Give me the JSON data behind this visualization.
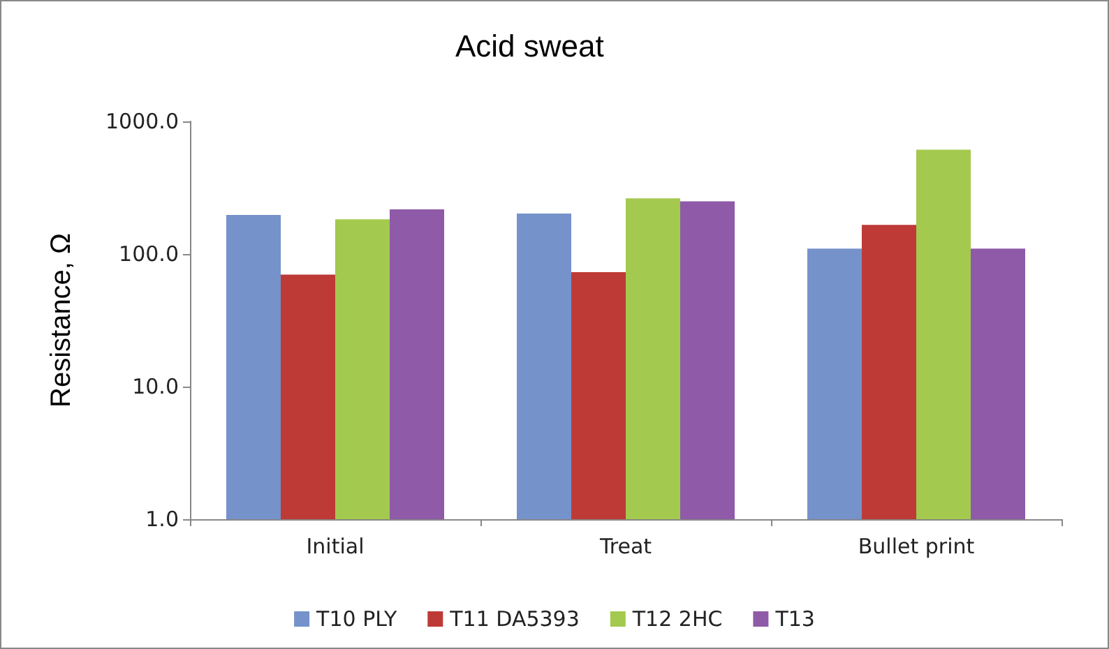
{
  "chart_data": {
    "type": "bar",
    "title": "Acid sweat",
    "ylabel": "Resistance, Ω",
    "categories": [
      "Initial",
      "Treat",
      "Bullet print"
    ],
    "series": [
      {
        "name": "T10 PLY",
        "color": "#7592cb",
        "values": [
          197,
          202,
          110
        ]
      },
      {
        "name": "T11 DA5393",
        "color": "#be3a36",
        "values": [
          70,
          73,
          166
        ]
      },
      {
        "name": "T12 2HC",
        "color": "#a3c94e",
        "values": [
          183,
          263,
          612
        ]
      },
      {
        "name": "T13",
        "color": "#8f5aa8",
        "values": [
          217,
          250,
          110
        ]
      }
    ],
    "log": "y",
    "ylim": [
      1,
      1000
    ],
    "yticks": [
      {
        "value": 1,
        "label": "1.0"
      },
      {
        "value": 10,
        "label": "10.0"
      },
      {
        "value": 100,
        "label": "100.0"
      },
      {
        "value": 1000,
        "label": "1000.0"
      }
    ],
    "grid": false,
    "legend": "bottom"
  }
}
